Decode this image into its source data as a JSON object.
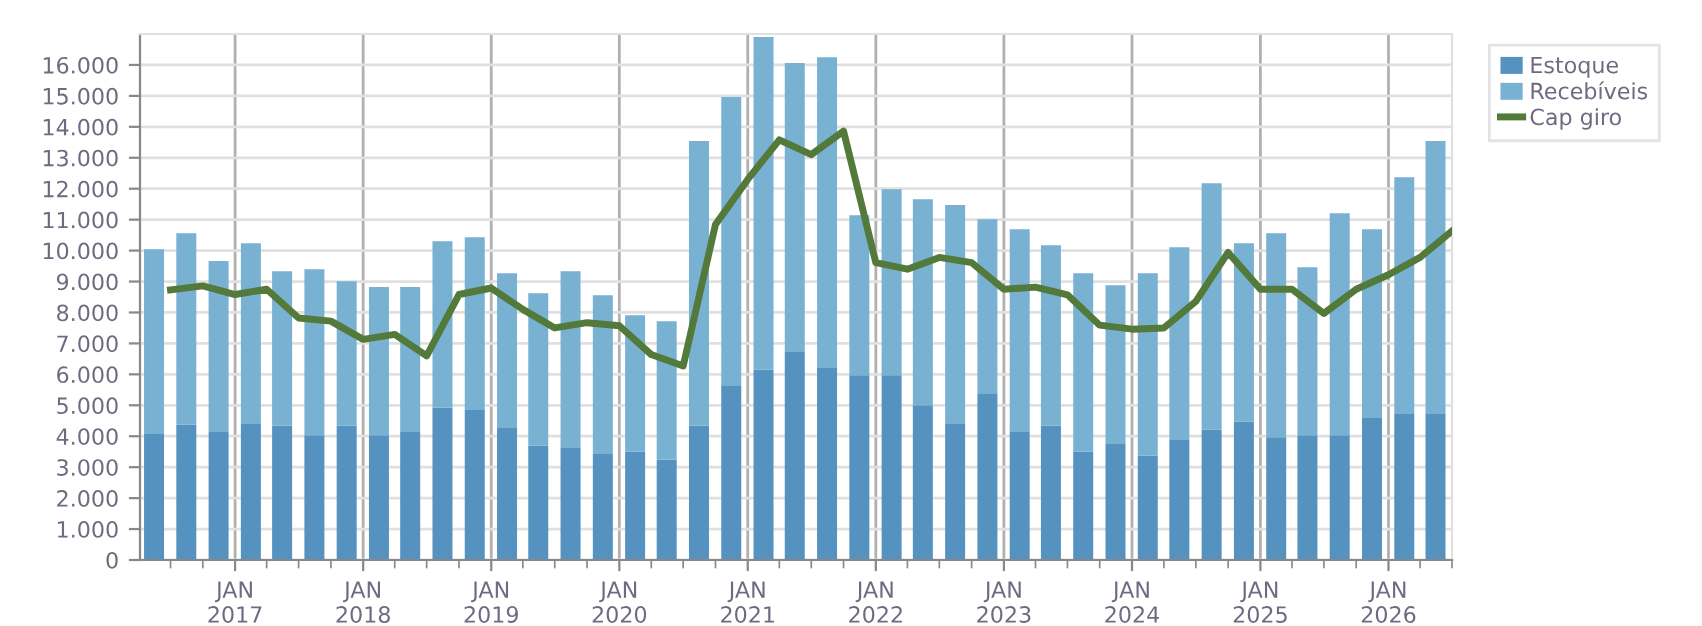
{
  "chart_data": {
    "type": "bar",
    "stacked": true,
    "x": [
      "2016-05-15",
      "2016-08-15",
      "2016-11-15",
      "2017-02-15",
      "2017-05-15",
      "2017-08-15",
      "2017-11-15",
      "2018-02-15",
      "2018-05-15",
      "2018-08-15",
      "2018-11-15",
      "2019-02-15",
      "2019-05-15",
      "2019-08-15",
      "2019-11-15",
      "2020-02-15",
      "2020-05-15",
      "2020-08-15",
      "2020-11-15",
      "2021-02-15",
      "2021-05-15",
      "2021-08-15",
      "2021-11-15",
      "2022-02-15",
      "2022-05-15",
      "2022-08-15",
      "2022-11-15",
      "2023-02-15",
      "2023-05-15",
      "2023-08-15",
      "2023-11-15",
      "2024-02-15",
      "2024-05-15",
      "2024-08-15",
      "2024-11-15",
      "2025-02-15",
      "2025-05-15",
      "2025-08-15",
      "2025-11-15",
      "2026-02-15",
      "2026-05-15"
    ],
    "series": [
      {
        "name": "Estoque",
        "color": "#5592bf",
        "values": [
          4100,
          4380,
          4160,
          4420,
          4350,
          4030,
          4350,
          4030,
          4160,
          4930,
          4870,
          4290,
          3700,
          3640,
          3450,
          3510,
          3250,
          4350,
          5650,
          6160,
          6750,
          6230,
          5970,
          5970,
          5000,
          4420,
          5390,
          4160,
          4350,
          3510,
          3770,
          3380,
          3900,
          4220,
          4480,
          3970,
          4030,
          4030,
          4610,
          4740,
          4740
        ]
      },
      {
        "name": "Recebíveis",
        "color": "#79b1d3",
        "values": [
          5940,
          6180,
          5500,
          5820,
          4980,
          5370,
          4660,
          4790,
          4660,
          5370,
          5560,
          4980,
          4920,
          5690,
          5110,
          4400,
          4470,
          9190,
          9310,
          10740,
          9310,
          10020,
          5170,
          6010,
          6660,
          7050,
          5620,
          6530,
          5820,
          5760,
          5110,
          5890,
          6210,
          7960,
          5760,
          6590,
          5430,
          7180,
          6080,
          7630,
          8800
        ]
      },
      {
        "name": "Cap giro",
        "type": "line",
        "color": "#537a3a",
        "x": [
          "2016-07-01",
          "2016-10-01",
          "2017-01-01",
          "2017-04-01",
          "2017-07-01",
          "2017-10-01",
          "2018-01-01",
          "2018-04-01",
          "2018-07-01",
          "2018-10-01",
          "2019-01-01",
          "2019-04-01",
          "2019-07-01",
          "2019-10-01",
          "2020-01-01",
          "2020-04-01",
          "2020-07-01",
          "2020-10-01",
          "2021-01-01",
          "2021-04-01",
          "2021-07-01",
          "2021-10-01",
          "2022-01-01",
          "2022-04-01",
          "2022-07-01",
          "2022-10-01",
          "2023-01-01",
          "2023-04-01",
          "2023-07-01",
          "2023-10-01",
          "2024-01-01",
          "2024-04-01",
          "2024-07-01",
          "2024-10-01",
          "2025-01-01",
          "2025-04-01",
          "2025-07-01",
          "2025-10-01",
          "2026-01-01",
          "2026-04-01",
          "2026-07-01"
        ],
        "values": [
          8730,
          8860,
          8580,
          8750,
          7820,
          7720,
          7130,
          7290,
          6600,
          8580,
          8790,
          8100,
          7500,
          7670,
          7570,
          6640,
          6270,
          10840,
          12300,
          13580,
          13100,
          13860,
          9610,
          9400,
          9780,
          9610,
          8750,
          8820,
          8570,
          7590,
          7460,
          7500,
          8360,
          9940,
          8750,
          8750,
          7970,
          8750,
          9220,
          9780,
          10630
        ]
      }
    ],
    "xlim": [
      "2016-04-05",
      "2026-07-01"
    ],
    "xticks": [
      {
        "value": "2017-01-01",
        "label": "JAN\n2017"
      },
      {
        "value": "2018-01-01",
        "label": "JAN\n2018"
      },
      {
        "value": "2019-01-01",
        "label": "JAN\n2019"
      },
      {
        "value": "2020-01-01",
        "label": "JAN\n2020"
      },
      {
        "value": "2021-01-01",
        "label": "JAN\n2021"
      },
      {
        "value": "2022-01-01",
        "label": "JAN\n2022"
      },
      {
        "value": "2023-01-01",
        "label": "JAN\n2023"
      },
      {
        "value": "2024-01-01",
        "label": "JAN\n2024"
      },
      {
        "value": "2025-01-01",
        "label": "JAN\n2025"
      },
      {
        "value": "2026-01-01",
        "label": "JAN\n2026"
      }
    ],
    "ylim": [
      0,
      17000
    ],
    "yticks": [
      0,
      {
        "value": 1000,
        "label": "1.000"
      },
      {
        "value": 2000,
        "label": "2.000"
      },
      {
        "value": 3000,
        "label": "3.000"
      },
      {
        "value": 4000,
        "label": "4.000"
      },
      {
        "value": 5000,
        "label": "5.000"
      },
      {
        "value": 6000,
        "label": "6.000"
      },
      {
        "value": 7000,
        "label": "7.000"
      },
      {
        "value": 8000,
        "label": "8.000"
      },
      {
        "value": 9000,
        "label": "9.000"
      },
      {
        "value": 10000,
        "label": "10.000"
      },
      {
        "value": 11000,
        "label": "11.000"
      },
      {
        "value": 12000,
        "label": "12.000"
      },
      {
        "value": 13000,
        "label": "13.000"
      },
      {
        "value": 14000,
        "label": "14.000"
      },
      {
        "value": 15000,
        "label": "15.000"
      },
      {
        "value": 16000,
        "label": "16.000"
      }
    ],
    "grid": true,
    "legend": "top right",
    "line_style": "solid",
    "marker": "none"
  }
}
